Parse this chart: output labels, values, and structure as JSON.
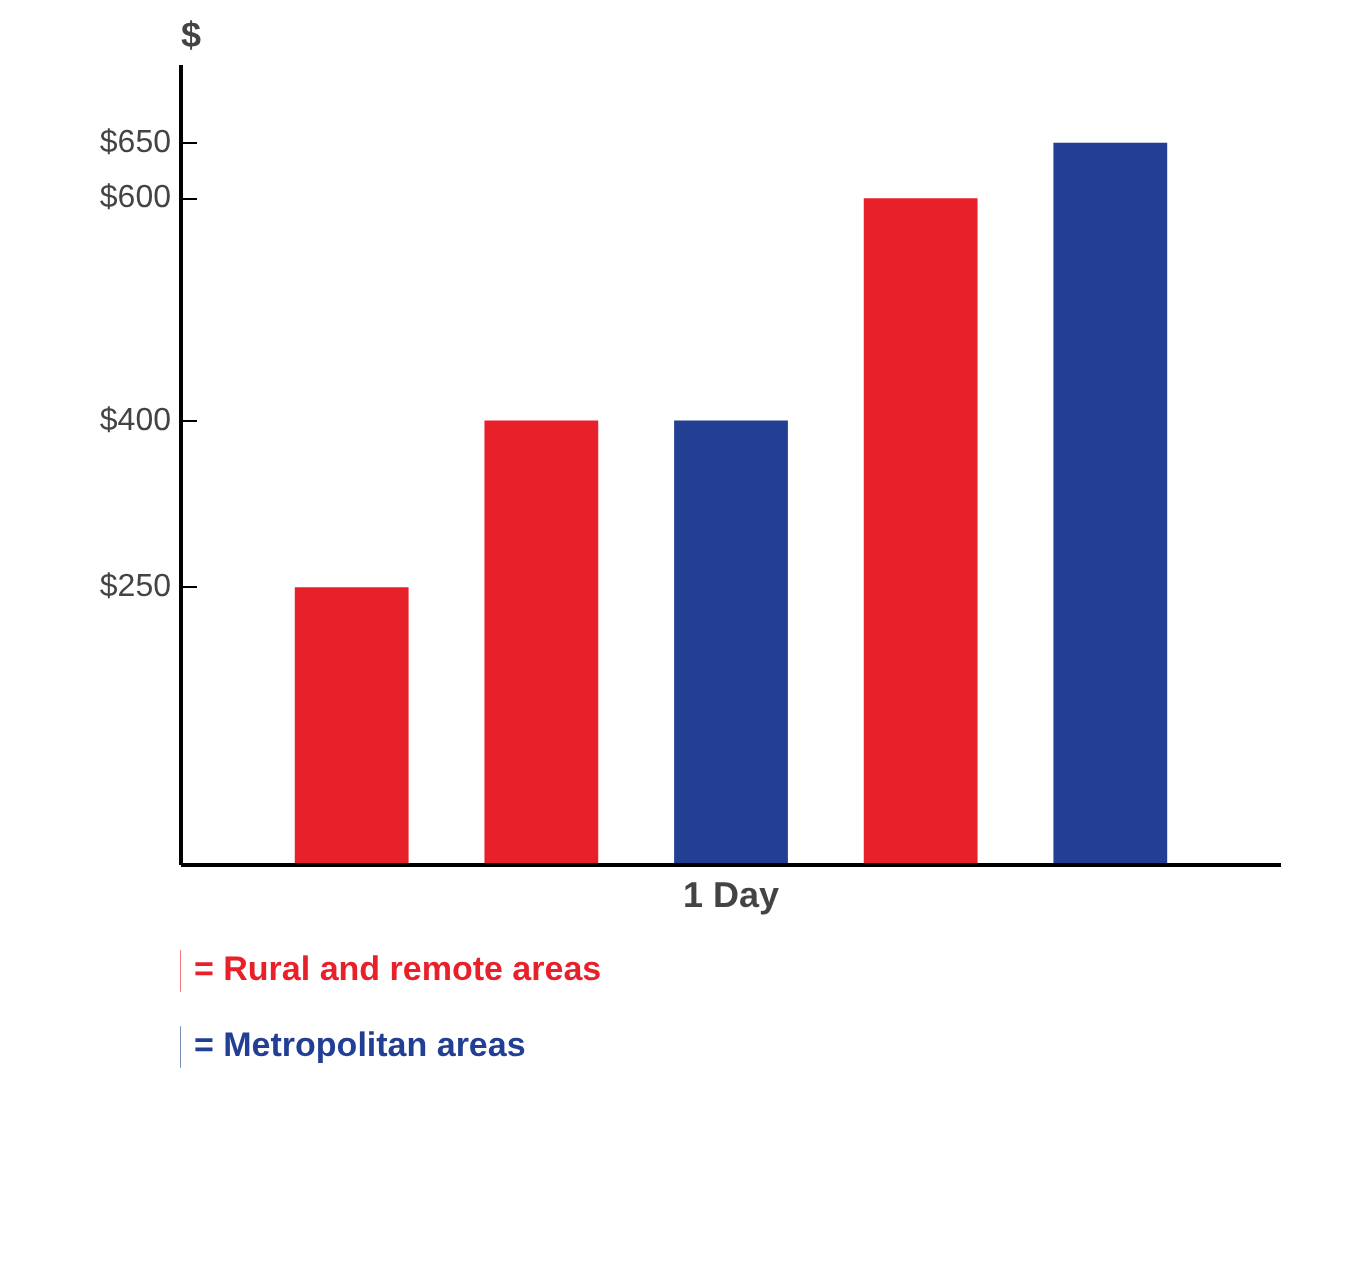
{
  "chart_data": {
    "type": "bar",
    "xlabel": "1 Day",
    "ylabel": "$",
    "categories": [
      null,
      null,
      null,
      null,
      null
    ],
    "series": [
      {
        "name": "= Rural and remote areas",
        "color": "#e8202a",
        "values": [
          250,
          400,
          null,
          600,
          null
        ]
      },
      {
        "name": "= Metropolitan areas",
        "color": "#233f94",
        "values": [
          null,
          null,
          400,
          null,
          650
        ]
      }
    ],
    "ylim": [
      0,
      720
    ],
    "yticks": [
      {
        "value": 250,
        "label": "$250"
      },
      {
        "value": 400,
        "label": "$400"
      },
      {
        "value": 600,
        "label": "$600"
      },
      {
        "value": 650,
        "label": "$650"
      }
    ],
    "grid": false,
    "legend": "bottom"
  }
}
